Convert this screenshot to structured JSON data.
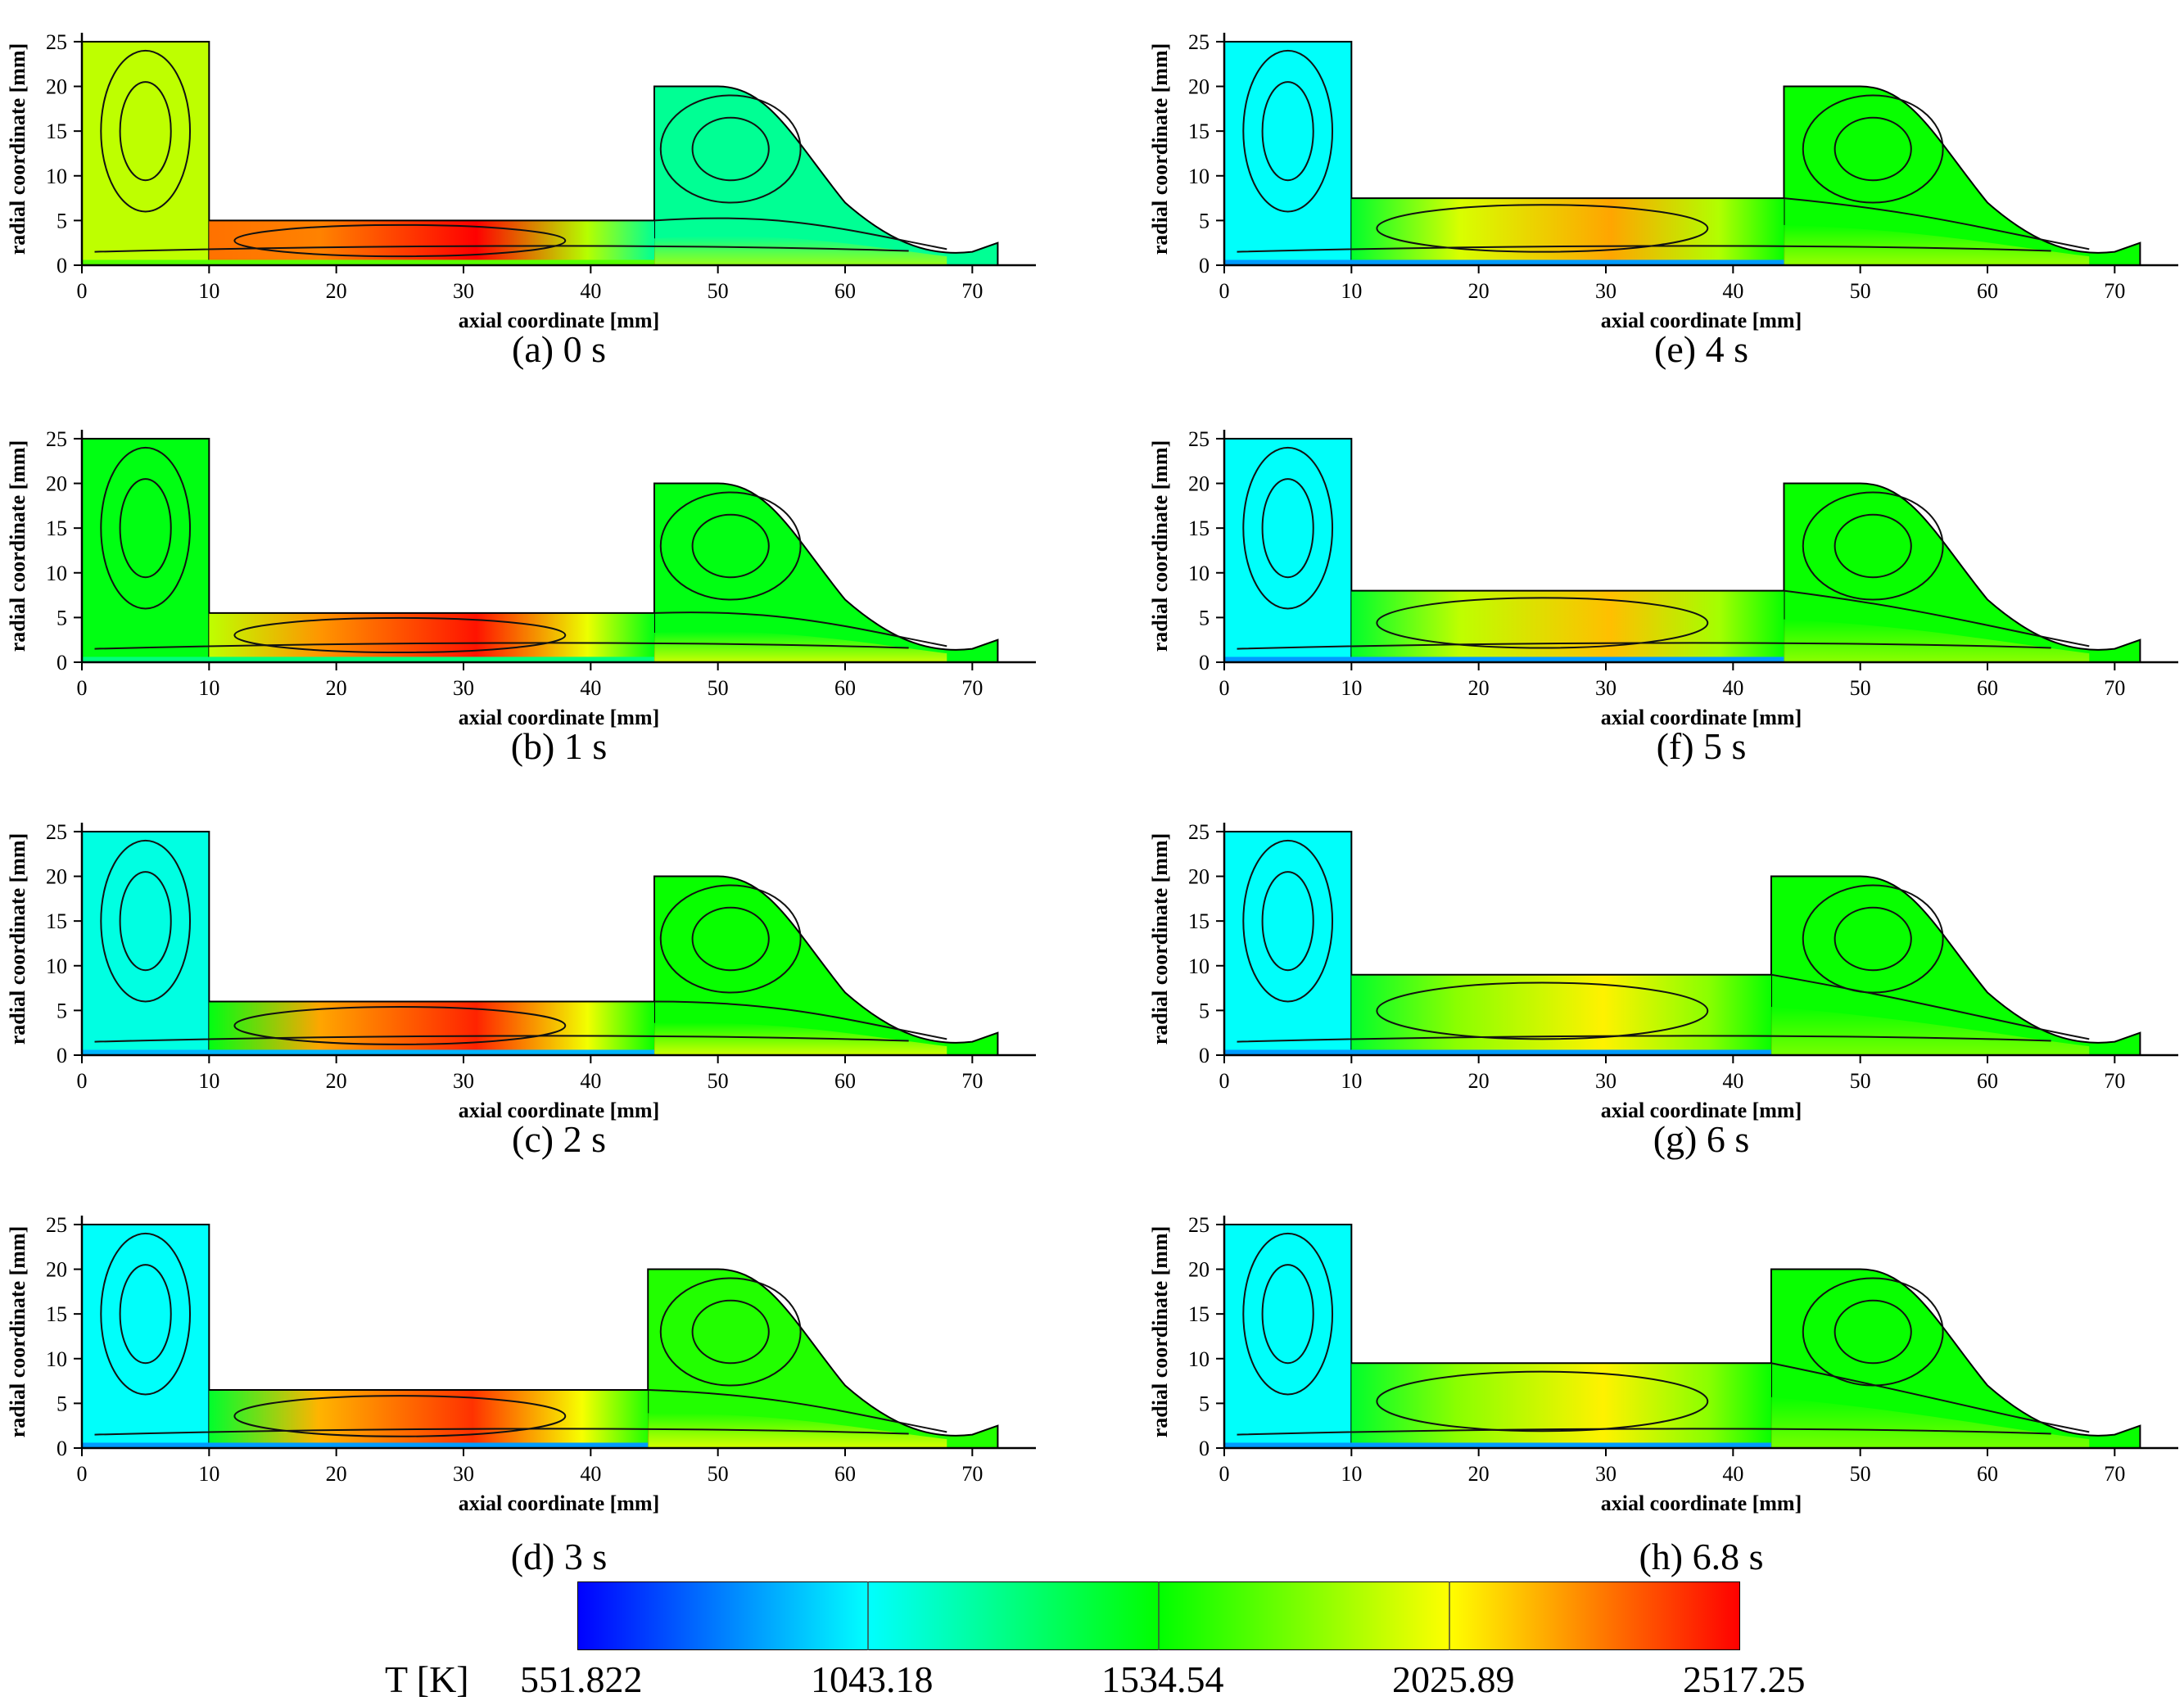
{
  "figure": {
    "type": "contour",
    "x_axis": {
      "label": "axial coordinate [mm]",
      "range": [
        0,
        75
      ],
      "ticks": [
        "0",
        "10",
        "20",
        "30",
        "40",
        "50",
        "60",
        "70"
      ]
    },
    "y_axis": {
      "label": "radial coordinate [mm]",
      "range": [
        0,
        26
      ],
      "ticks": [
        "0",
        "5",
        "10",
        "15",
        "20",
        "25"
      ]
    }
  },
  "chart_data": [
    {
      "type": "heatmap",
      "caption": "(a) 0 s",
      "time_s": 0,
      "xlabel": "axial coordinate [mm]",
      "ylabel": "radial coordinate [mm]",
      "xlim": [
        0,
        75
      ],
      "ylim": [
        0,
        26
      ],
      "neck_top_mm": 5,
      "right_chamber_start_mm": 45,
      "peak_T_K": 2517,
      "left_chamber_T_K": 1900,
      "right_chamber_T_K": 1250
    },
    {
      "type": "heatmap",
      "caption": "(b) 1 s",
      "time_s": 1,
      "xlabel": "axial coordinate [mm]",
      "ylabel": "radial coordinate [mm]",
      "xlim": [
        0,
        75
      ],
      "ylim": [
        0,
        26
      ],
      "neck_top_mm": 5.5,
      "right_chamber_start_mm": 45,
      "peak_T_K": 2480,
      "left_chamber_T_K": 1500,
      "right_chamber_T_K": 1500
    },
    {
      "type": "heatmap",
      "caption": "(c) 2 s",
      "time_s": 2,
      "xlabel": "axial coordinate [mm]",
      "ylabel": "radial coordinate [mm]",
      "xlim": [
        0,
        75
      ],
      "ylim": [
        0,
        26
      ],
      "neck_top_mm": 6,
      "right_chamber_start_mm": 45,
      "peak_T_K": 2450,
      "left_chamber_T_K": 1100,
      "right_chamber_T_K": 1550
    },
    {
      "type": "heatmap",
      "caption": "(d) 3 s",
      "time_s": 3,
      "xlabel": "axial coordinate [mm]",
      "ylabel": "radial coordinate [mm]",
      "xlim": [
        0,
        75
      ],
      "ylim": [
        0,
        26
      ],
      "neck_top_mm": 6.5,
      "right_chamber_start_mm": 44.5,
      "peak_T_K": 2420,
      "left_chamber_T_K": 1050,
      "right_chamber_T_K": 1600
    },
    {
      "type": "heatmap",
      "caption": "(e) 4 s",
      "time_s": 4,
      "xlabel": "axial coordinate [mm]",
      "ylabel": "radial coordinate [mm]",
      "xlim": [
        0,
        75
      ],
      "ylim": [
        0,
        26
      ],
      "neck_top_mm": 7.5,
      "right_chamber_start_mm": 44,
      "peak_T_K": 2200,
      "left_chamber_T_K": 1050,
      "right_chamber_T_K": 1550
    },
    {
      "type": "heatmap",
      "caption": "(f) 5 s",
      "time_s": 5,
      "xlabel": "axial coordinate [mm]",
      "ylabel": "radial coordinate [mm]",
      "xlim": [
        0,
        75
      ],
      "ylim": [
        0,
        26
      ],
      "neck_top_mm": 8,
      "right_chamber_start_mm": 44,
      "peak_T_K": 2150,
      "left_chamber_T_K": 1050,
      "right_chamber_T_K": 1550
    },
    {
      "type": "heatmap",
      "caption": "(g) 6 s",
      "time_s": 6,
      "xlabel": "axial coordinate [mm]",
      "ylabel": "radial coordinate [mm]",
      "xlim": [
        0,
        75
      ],
      "ylim": [
        0,
        26
      ],
      "neck_top_mm": 9,
      "right_chamber_start_mm": 43,
      "peak_T_K": 2050,
      "left_chamber_T_K": 1050,
      "right_chamber_T_K": 1550
    },
    {
      "type": "heatmap",
      "caption": "(h) 6.8 s",
      "time_s": 6.8,
      "xlabel": "axial coordinate [mm]",
      "ylabel": "radial coordinate [mm]",
      "xlim": [
        0,
        75
      ],
      "ylim": [
        0,
        26
      ],
      "neck_top_mm": 9.5,
      "right_chamber_start_mm": 43,
      "peak_T_K": 2050,
      "left_chamber_T_K": 1050,
      "right_chamber_T_K": 1550
    }
  ],
  "colorbar": {
    "title": "T [K]",
    "min": 551.822,
    "max": 2517.25,
    "labels": [
      "551.822",
      "1043.18",
      "1534.54",
      "2025.89",
      "2517.25"
    ],
    "colors": [
      "#0000ff",
      "#00ffff",
      "#00ff00",
      "#ffff00",
      "#ff0000"
    ]
  }
}
